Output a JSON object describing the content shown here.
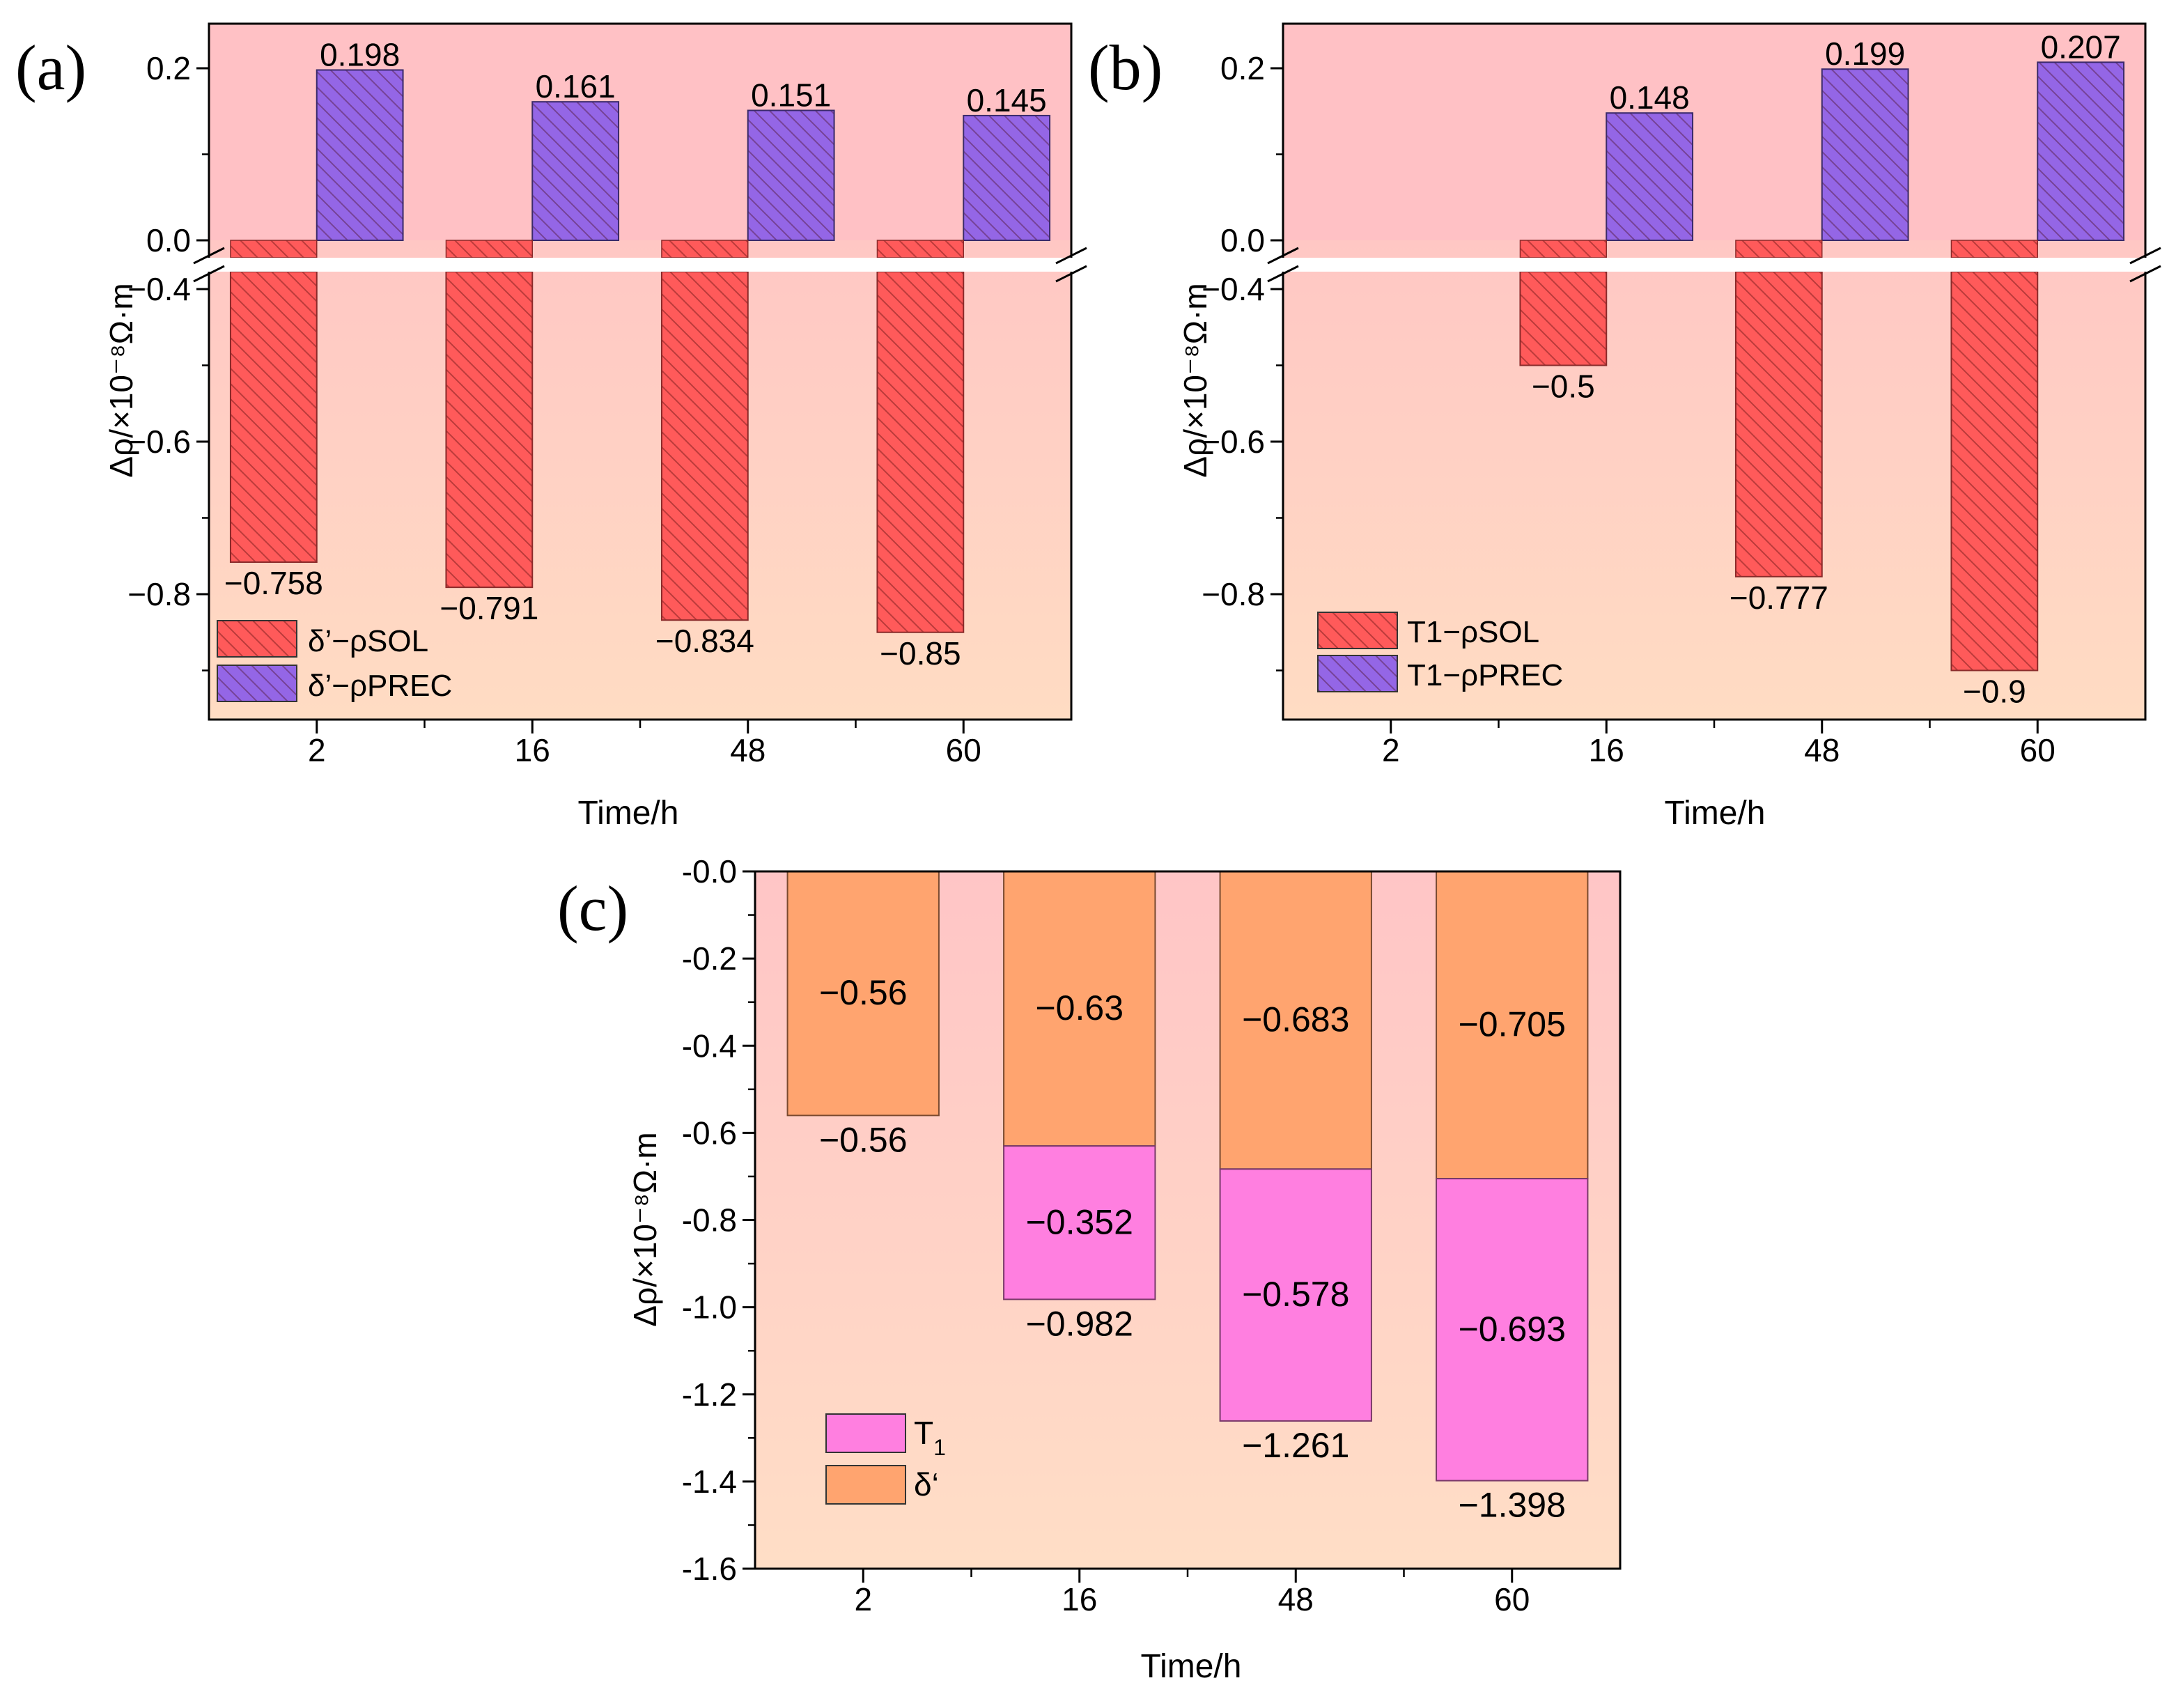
{
  "colors": {
    "sol": "#ff5a5a",
    "prec": "#9466e6",
    "delta": "#ffa46f",
    "t1": "#ff7fe0",
    "bg_top_a": "#ffc1c5",
    "bg_bottom_a": "#ffdcc3"
  },
  "chart_data": [
    {
      "panel": "(a)",
      "type": "bar",
      "axis_break": {
        "from": -0.38,
        "to": 0.0
      },
      "categories": [
        "2",
        "16",
        "48",
        "60"
      ],
      "series": [
        {
          "name": "δ’−ρSOL",
          "values": [
            -0.758,
            -0.791,
            -0.834,
            -0.85
          ],
          "labels": [
            "−0.758",
            "−0.791",
            "−0.834",
            "−0.85"
          ],
          "color": "#ff5a5a"
        },
        {
          "name": "δ’−ρPREC",
          "values": [
            0.198,
            0.161,
            0.151,
            0.145
          ],
          "labels": [
            "0.198",
            "0.161",
            "0.151",
            "0.145"
          ],
          "color": "#9466e6"
        }
      ],
      "xlabel": "Time/h",
      "ylabel": "Δρ/×10⁻⁸Ω·m",
      "yticks": [
        "0.2",
        "0.0",
        "−0.4",
        "−0.6",
        "−0.8"
      ],
      "legend": "bottom-left"
    },
    {
      "panel": "(b)",
      "type": "bar",
      "axis_break": {
        "from": -0.38,
        "to": 0.0
      },
      "categories": [
        "2",
        "16",
        "48",
        "60"
      ],
      "series": [
        {
          "name": "T1−ρSOL",
          "values": [
            null,
            -0.5,
            -0.777,
            -0.9
          ],
          "labels": [
            "",
            "−0.5",
            "−0.777",
            "−0.9"
          ],
          "color": "#ff5a5a"
        },
        {
          "name": "T1−ρPREC",
          "values": [
            null,
            0.148,
            0.199,
            0.207
          ],
          "labels": [
            "",
            "0.148",
            "0.199",
            "0.207"
          ],
          "color": "#9466e6"
        }
      ],
      "xlabel": "Time/h",
      "ylabel": "Δρ/×10⁻⁸Ω·m",
      "yticks": [
        "0.2",
        "0.0",
        "−0.4",
        "−0.6",
        "−0.8"
      ],
      "legend": "bottom-left"
    },
    {
      "panel": "(c)",
      "type": "bar",
      "stacked": true,
      "categories": [
        "2",
        "16",
        "48",
        "60"
      ],
      "series": [
        {
          "name": "δ‘",
          "values": [
            -0.56,
            -0.63,
            -0.683,
            -0.705
          ],
          "labels": [
            "−0.56",
            "−0.63",
            "−0.683",
            "−0.705"
          ],
          "color": "#ffa46f"
        },
        {
          "name": "T",
          "name_sub": "1",
          "values": [
            0,
            -0.352,
            -0.578,
            -0.693
          ],
          "labels": [
            "",
            "−0.352",
            "−0.578",
            "−0.693"
          ],
          "color": "#ff7fe0"
        }
      ],
      "totals": [
        -0.56,
        -0.982,
        -1.261,
        -1.398
      ],
      "total_labels": [
        "−0.56",
        "−0.982",
        "−1.261",
        "−1.398"
      ],
      "xlabel": "Time/h",
      "ylabel": "Δρ/×10⁻⁸Ω·m",
      "ylim": [
        -1.6,
        0.0
      ],
      "yticks": [
        "-0.0",
        "-0.2",
        "-0.4",
        "-0.6",
        "-0.8",
        "-1.0",
        "-1.2",
        "-1.4",
        "-1.6"
      ],
      "legend": "bottom-left"
    }
  ]
}
